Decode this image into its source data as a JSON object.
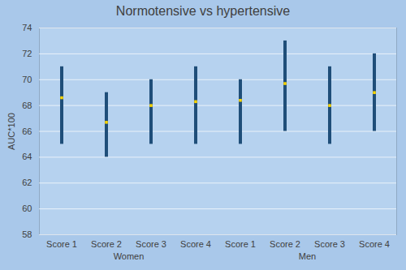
{
  "chart_data": {
    "type": "errorbar",
    "title": "Normotensive vs hypertensive",
    "y_label": "AUC*100",
    "categories": [
      "Score 1",
      "Score 2",
      "Score 3",
      "Score 4",
      "Score 1",
      "Score 2",
      "Score 3",
      "Score 4"
    ],
    "groups": [
      "Women",
      "Women",
      "Women",
      "Women",
      "Men",
      "Men",
      "Men",
      "Men"
    ],
    "values": [
      68.6,
      66.7,
      68.0,
      68.3,
      68.4,
      69.7,
      68.0,
      69.0
    ],
    "error_low": [
      65,
      64,
      65,
      65,
      65,
      66,
      65,
      66
    ],
    "error_high": [
      71,
      69,
      70,
      71,
      70,
      73,
      71,
      72
    ],
    "color": "#1f4e79",
    "marker": "square",
    "ylim": [
      58,
      74
    ],
    "yticks": [
      58,
      60,
      62,
      64,
      66,
      68,
      70,
      72,
      74
    ],
    "grid": true
  }
}
